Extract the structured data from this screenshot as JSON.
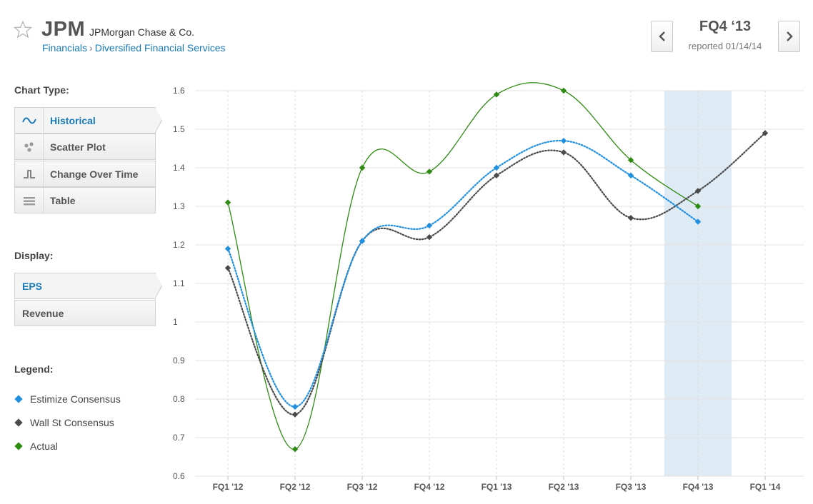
{
  "header": {
    "ticker": "JPM",
    "company": "JPMorgan Chase & Co.",
    "sector": "Financials",
    "breadcrumb_separator": "›",
    "industry": "Diversified Financial Services"
  },
  "period": {
    "label": "FQ4 ‘13",
    "reported": "reported 01/14/14"
  },
  "sidebar": {
    "chart_type_title": "Chart Type:",
    "chart_types": [
      {
        "label": "Historical",
        "icon": "wave-icon",
        "active": true
      },
      {
        "label": "Scatter Plot",
        "icon": "scatter-icon",
        "active": false
      },
      {
        "label": "Change Over Time",
        "icon": "step-icon",
        "active": false
      },
      {
        "label": "Table",
        "icon": "table-icon",
        "active": false
      }
    ],
    "display_title": "Display:",
    "display_options": [
      {
        "label": "EPS",
        "active": true
      },
      {
        "label": "Revenue",
        "active": false
      }
    ],
    "legend_title": "Legend:",
    "legend": [
      {
        "label": "Estimize Consensus",
        "color": "#1f8fe0"
      },
      {
        "label": "Wall St Consensus",
        "color": "#4a4a4a"
      },
      {
        "label": "Actual",
        "color": "#2e8b12"
      }
    ]
  },
  "colors": {
    "accent": "#1a7ab8",
    "highlight_band": "#deebf5",
    "grid": "#e2e2e2"
  },
  "chart_data": {
    "type": "line",
    "categories": [
      "FQ1 '12",
      "FQ2 '12",
      "FQ3 '12",
      "FQ4 '12",
      "FQ1 '13",
      "FQ2 '13",
      "FQ3 '13",
      "FQ4 '13",
      "FQ1 '14"
    ],
    "yticks": [
      "1.6",
      "1.5",
      "1.4",
      "1.3",
      "1.2",
      "1.1",
      "1",
      "0.9",
      "0.8",
      "0.7",
      "0.6"
    ],
    "ylim": [
      0.6,
      1.6
    ],
    "highlight_category": "FQ4 '13",
    "series": [
      {
        "name": "Actual",
        "color": "#2e8b12",
        "style": "solid",
        "values": [
          1.31,
          0.67,
          1.4,
          1.39,
          1.59,
          1.6,
          1.42,
          1.3,
          null
        ]
      },
      {
        "name": "Wall St Consensus",
        "color": "#4a4a4a",
        "style": "dotted",
        "values": [
          1.14,
          0.76,
          1.21,
          1.22,
          1.38,
          1.44,
          1.27,
          1.34,
          1.49
        ]
      },
      {
        "name": "Estimize Consensus",
        "color": "#1f8fe0",
        "style": "dotted",
        "values": [
          1.19,
          0.78,
          1.21,
          1.25,
          1.4,
          1.47,
          1.38,
          1.26,
          null
        ]
      }
    ]
  }
}
